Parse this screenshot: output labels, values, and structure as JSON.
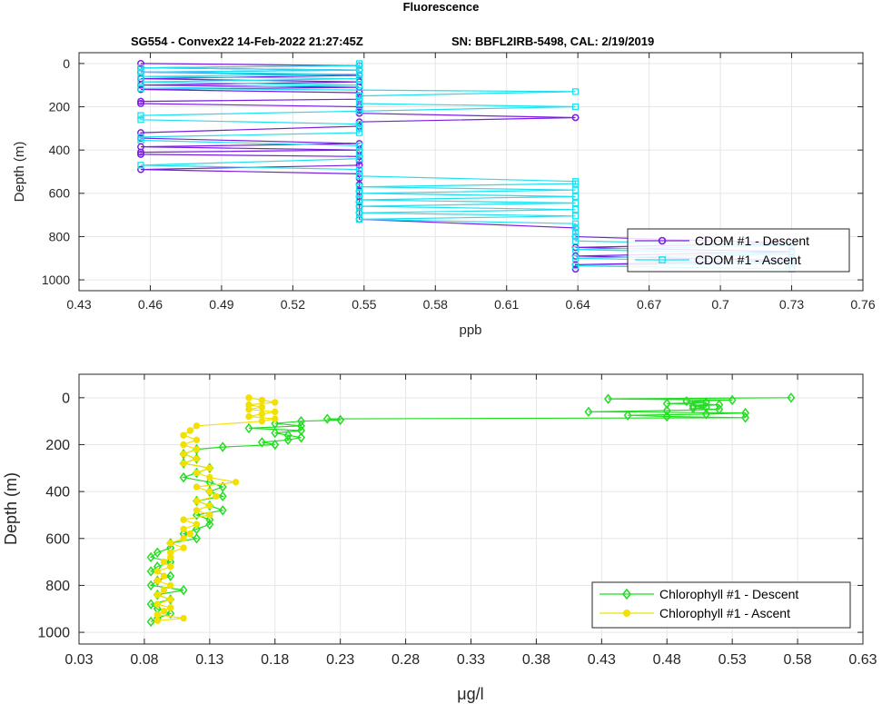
{
  "figure": {
    "title": "Fluorescence",
    "subtitle_left": "SG554 - Convex22 14-Feb-2022 21:27:45Z",
    "subtitle_right": "SN: BBFL2IRB-5498, CAL: 2/19/2019"
  },
  "chart_data": [
    {
      "type": "line",
      "xlabel": "ppb",
      "ylabel": "Depth (m)",
      "xlim": [
        0.43,
        0.76
      ],
      "ylim": [
        1050,
        -50
      ],
      "y_reversed": true,
      "xticks": [
        "0.43",
        "0.46",
        "0.49",
        "0.52",
        "0.55",
        "0.58",
        "0.61",
        "0.64",
        "0.67",
        "0.7",
        "0.73",
        "0.76"
      ],
      "yticks": [
        "0",
        "200",
        "400",
        "600",
        "800",
        "1000"
      ],
      "grid": true,
      "legend_position": "bottom-right",
      "series": [
        {
          "name": "CDOM #1 - Descent",
          "color": "#7a1de0",
          "marker": "circle",
          "depth": [
            0,
            10,
            20,
            30,
            40,
            55,
            70,
            85,
            100,
            110,
            120,
            135,
            150,
            165,
            175,
            185,
            200,
            215,
            230,
            250,
            270,
            290,
            320,
            345,
            370,
            385,
            400,
            410,
            420,
            430,
            450,
            470,
            490,
            510,
            530,
            560,
            590,
            615,
            640,
            660,
            690,
            720,
            760,
            800,
            830,
            850,
            870,
            890,
            910,
            930,
            950
          ],
          "value": [
            0.456,
            0.548,
            0.456,
            0.548,
            0.456,
            0.548,
            0.456,
            0.548,
            0.456,
            0.548,
            0.456,
            0.548,
            0.548,
            0.548,
            0.456,
            0.456,
            0.548,
            0.548,
            0.548,
            0.639,
            0.548,
            0.548,
            0.456,
            0.456,
            0.548,
            0.456,
            0.548,
            0.456,
            0.456,
            0.548,
            0.548,
            0.548,
            0.456,
            0.548,
            0.548,
            0.548,
            0.548,
            0.548,
            0.548,
            0.548,
            0.548,
            0.548,
            0.639,
            0.639,
            0.73,
            0.639,
            0.73,
            0.639,
            0.73,
            0.639,
            0.639
          ]
        },
        {
          "name": "CDOM #1 - Ascent",
          "color": "#1ee0f0",
          "marker": "square",
          "depth": [
            950,
            935,
            920,
            900,
            880,
            860,
            840,
            820,
            800,
            780,
            760,
            740,
            720,
            705,
            690,
            675,
            660,
            645,
            630,
            615,
            600,
            585,
            570,
            555,
            545,
            520,
            490,
            470,
            440,
            410,
            380,
            355,
            340,
            320,
            300,
            280,
            260,
            240,
            220,
            200,
            185,
            170,
            150,
            130,
            115,
            100,
            85,
            70,
            60,
            50,
            40,
            30,
            20,
            10,
            0
          ],
          "value": [
            0.73,
            0.639,
            0.73,
            0.639,
            0.73,
            0.639,
            0.73,
            0.639,
            0.639,
            0.639,
            0.639,
            0.639,
            0.548,
            0.639,
            0.548,
            0.639,
            0.548,
            0.639,
            0.548,
            0.639,
            0.548,
            0.639,
            0.548,
            0.639,
            0.639,
            0.548,
            0.548,
            0.456,
            0.548,
            0.548,
            0.548,
            0.456,
            0.456,
            0.548,
            0.548,
            0.548,
            0.456,
            0.456,
            0.548,
            0.639,
            0.548,
            0.548,
            0.548,
            0.639,
            0.456,
            0.548,
            0.456,
            0.548,
            0.456,
            0.548,
            0.456,
            0.548,
            0.456,
            0.548,
            0.548
          ]
        }
      ]
    },
    {
      "type": "line",
      "xlabel": "μg/l",
      "ylabel": "Depth (m)",
      "xlim": [
        0.03,
        0.63
      ],
      "ylim": [
        1050,
        -100
      ],
      "y_reversed": true,
      "xticks": [
        "0.03",
        "0.08",
        "0.13",
        "0.18",
        "0.23",
        "0.28",
        "0.33",
        "0.38",
        "0.43",
        "0.48",
        "0.53",
        "0.58",
        "0.63"
      ],
      "yticks": [
        "0",
        "200",
        "400",
        "600",
        "800",
        "1000"
      ],
      "grid": true,
      "legend_position": "bottom-right",
      "series": [
        {
          "name": "Chlorophyll #1 - Descent",
          "color": "#22dd22",
          "marker": "diamond",
          "depth": [
            0,
            5,
            10,
            15,
            20,
            25,
            30,
            35,
            40,
            45,
            50,
            55,
            60,
            65,
            70,
            75,
            80,
            85,
            90,
            95,
            100,
            110,
            120,
            130,
            140,
            150,
            160,
            170,
            180,
            190,
            200,
            210,
            220,
            240,
            260,
            280,
            300,
            320,
            340,
            360,
            380,
            400,
            420,
            440,
            460,
            480,
            500,
            520,
            540,
            560,
            580,
            600,
            620,
            640,
            660,
            680,
            700,
            720,
            740,
            760,
            780,
            800,
            820,
            840,
            860,
            880,
            900,
            920,
            940,
            955
          ],
          "value": [
            0.575,
            0.435,
            0.53,
            0.495,
            0.51,
            0.48,
            0.52,
            0.5,
            0.51,
            0.5,
            0.52,
            0.48,
            0.42,
            0.54,
            0.51,
            0.45,
            0.48,
            0.54,
            0.22,
            0.23,
            0.2,
            0.18,
            0.2,
            0.16,
            0.2,
            0.18,
            0.19,
            0.2,
            0.19,
            0.17,
            0.18,
            0.14,
            0.12,
            0.11,
            0.12,
            0.11,
            0.13,
            0.12,
            0.11,
            0.13,
            0.14,
            0.13,
            0.14,
            0.12,
            0.13,
            0.14,
            0.12,
            0.13,
            0.13,
            0.12,
            0.11,
            0.12,
            0.1,
            0.1,
            0.09,
            0.085,
            0.1,
            0.09,
            0.085,
            0.1,
            0.09,
            0.085,
            0.11,
            0.09,
            0.1,
            0.085,
            0.09,
            0.1,
            0.09,
            0.085
          ]
        },
        {
          "name": "Chlorophyll #1 - Ascent",
          "color": "#f2e000",
          "marker": "circle-filled",
          "depth": [
            950,
            940,
            925,
            910,
            895,
            880,
            860,
            840,
            820,
            800,
            780,
            760,
            740,
            720,
            700,
            680,
            660,
            640,
            620,
            600,
            580,
            560,
            540,
            520,
            500,
            480,
            460,
            440,
            420,
            400,
            380,
            360,
            340,
            320,
            300,
            280,
            260,
            240,
            220,
            200,
            180,
            160,
            140,
            120,
            100,
            90,
            80,
            70,
            60,
            50,
            40,
            30,
            20,
            10,
            0
          ],
          "value": [
            0.09,
            0.11,
            0.09,
            0.095,
            0.1,
            0.09,
            0.1,
            0.09,
            0.095,
            0.1,
            0.09,
            0.095,
            0.09,
            0.1,
            0.095,
            0.1,
            0.1,
            0.11,
            0.1,
            0.11,
            0.115,
            0.11,
            0.12,
            0.11,
            0.13,
            0.12,
            0.13,
            0.12,
            0.135,
            0.13,
            0.12,
            0.15,
            0.13,
            0.12,
            0.13,
            0.11,
            0.12,
            0.11,
            0.12,
            0.11,
            0.12,
            0.11,
            0.115,
            0.12,
            0.17,
            0.18,
            0.16,
            0.17,
            0.18,
            0.16,
            0.17,
            0.16,
            0.18,
            0.17,
            0.16
          ]
        }
      ]
    }
  ]
}
